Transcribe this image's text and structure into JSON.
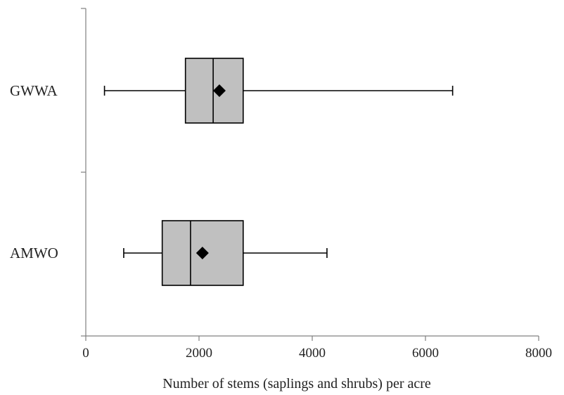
{
  "chart_data": {
    "type": "boxplot",
    "orientation": "horizontal",
    "title": "",
    "xlabel": "Number of stems (saplings and shrubs) per acre",
    "ylabel": "",
    "xlim": [
      0,
      8000
    ],
    "xticks": [
      0,
      2000,
      4000,
      6000,
      8000
    ],
    "xtick_labels": [
      "0",
      "2000",
      "4000",
      "6000",
      "8000"
    ],
    "grid": false,
    "legend": "none",
    "colors": {
      "box_fill": "#c0c0c0",
      "stroke": "#000000",
      "mean_marker": "#000000"
    },
    "mean_marker_shape": "diamond",
    "categories": [
      "GWWA",
      "AMWO"
    ],
    "boxes": [
      {
        "category": "GWWA",
        "whisker_low": 330,
        "q1": 1760,
        "median": 2250,
        "q3": 2780,
        "whisker_high": 6480,
        "mean": 2360
      },
      {
        "category": "AMWO",
        "whisker_low": 670,
        "q1": 1350,
        "median": 1850,
        "q3": 2780,
        "whisker_high": 4260,
        "mean": 2060
      }
    ]
  }
}
